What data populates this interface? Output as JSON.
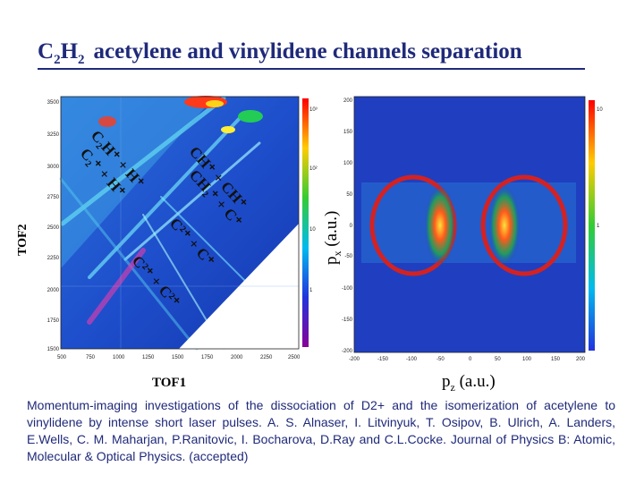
{
  "title": {
    "part1": "C",
    "sub1": "2",
    "part2": "H",
    "sub2": "2",
    "rest": "acetylene and vinylidene channels separation"
  },
  "tof_plot": {
    "x_ticks": [
      "500",
      "750",
      "1000",
      "1250",
      "1500",
      "1750",
      "2000",
      "2250",
      "2500"
    ],
    "y_ticks": [
      "3500",
      "3250",
      "3000",
      "2750",
      "2500",
      "2250",
      "2000",
      "1750",
      "1500"
    ],
    "colorbar_ticks": [
      "10³",
      "10²",
      "10",
      "1"
    ],
    "channels": {
      "ch_ch": "CH⁺ + CH⁺",
      "c2h_h": "C₂H⁺ + H⁺",
      "c2_h": "C₂⁺ + H⁺",
      "ch2_c": "CH₂⁺ + C⁺",
      "c2p_c": "C²⁺ + C⁺",
      "c2p_c2p": "C²⁺ + C²⁺"
    },
    "xlabel": "TOF1",
    "ylabel": "TOF2"
  },
  "momentum_plot": {
    "x_ticks": [
      "-200",
      "-150",
      "-100",
      "-50",
      "0",
      "50",
      "100",
      "150",
      "200"
    ],
    "y_ticks": [
      "200",
      "150",
      "100",
      "50",
      "0",
      "-50",
      "-100",
      "-150",
      "-200"
    ],
    "colorbar_ticks": [
      "10",
      "1"
    ],
    "xlabel": "p",
    "xlabel_sub": "z",
    "xlabel_unit": "(a.u.)",
    "ylabel": "p",
    "ylabel_sub": "x",
    "ylabel_unit": "(a.u.)"
  },
  "caption": "Momentum-imaging investigations of the dissociation of D2+ and the isomerization of acetylene to vinylidene by intense short laser pulses. A. S. Alnaser, I. Litvinyuk, T. Osipov, B. Ulrich, A. Landers, E.Wells, C. M. Maharjan, P.Ranitovic, I. Bocharova, D.Ray and C.L.Cocke. Journal of Physics B: Atomic, Molecular & Optical Physics. (accepted)",
  "colors": {
    "title": "#1f2a7a",
    "caption": "#1f2a7a",
    "plot_bg": "#1f3fc0",
    "ring": "#d42222"
  }
}
